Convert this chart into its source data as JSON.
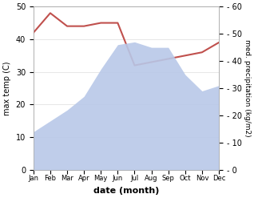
{
  "months": [
    "Jan",
    "Feb",
    "Mar",
    "Apr",
    "May",
    "Jun",
    "Jul",
    "Aug",
    "Sep",
    "Oct",
    "Nov",
    "Dec"
  ],
  "precipitation": [
    14,
    18,
    22,
    27,
    37,
    46,
    47,
    45,
    45,
    35,
    29,
    31
  ],
  "temperature": [
    42,
    48,
    44,
    44,
    45,
    45,
    32,
    33,
    34,
    35,
    36,
    39
  ],
  "temp_color": "#c0504d",
  "precip_color": "#b8c8e8",
  "ylabel_left": "max temp (C)",
  "ylabel_right": "med. precipitation (kg/m2)",
  "xlabel": "date (month)",
  "ylim_left": [
    0,
    50
  ],
  "ylim_right": [
    0,
    60
  ],
  "bg_color": "#ffffff"
}
